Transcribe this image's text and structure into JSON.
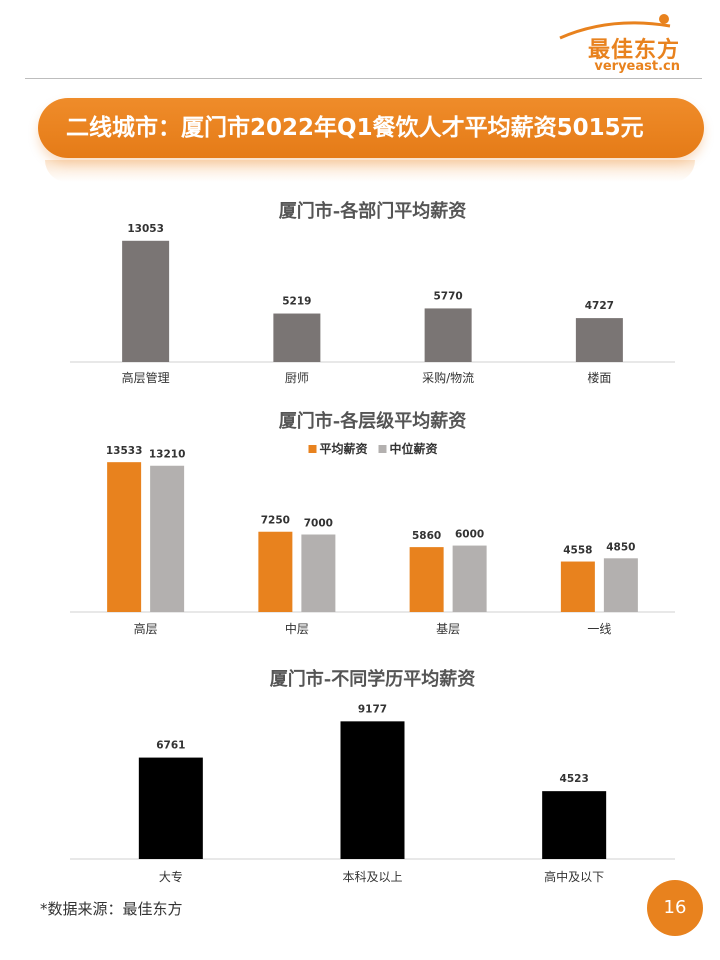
{
  "logo": {
    "brand": "最佳东方",
    "url": "veryeast.cn"
  },
  "banner": {
    "title": "二线城市：厦门市2022年Q1餐饮人才平均薪资5015元"
  },
  "chart_data": [
    {
      "type": "bar",
      "title": "厦门市-各部门平均薪资",
      "categories": [
        "高层管理",
        "厨师",
        "采购/物流",
        "楼面"
      ],
      "values": [
        13053,
        5219,
        5770,
        4727
      ],
      "color": "#7a7574",
      "ylim": [
        0,
        14000
      ]
    },
    {
      "type": "bar",
      "title": "厦门市-各层级平均薪资",
      "categories": [
        "高层",
        "中层",
        "基层",
        "一线"
      ],
      "series": [
        {
          "name": "平均薪资",
          "values": [
            13533,
            7250,
            5860,
            4558
          ],
          "color": "#e8821e"
        },
        {
          "name": "中位薪资",
          "values": [
            13210,
            7000,
            6000,
            4850
          ],
          "color": "#b3b0af"
        }
      ],
      "legend": "top-center",
      "ylim": [
        0,
        14000
      ]
    },
    {
      "type": "bar",
      "title": "厦门市-不同学历平均薪资",
      "categories": [
        "大专",
        "本科及以上",
        "高中及以下"
      ],
      "values": [
        6761,
        9177,
        4523
      ],
      "color": "#000000",
      "ylim": [
        0,
        10000
      ]
    }
  ],
  "footer": {
    "source": "*数据来源：最佳东方",
    "page": "16"
  }
}
